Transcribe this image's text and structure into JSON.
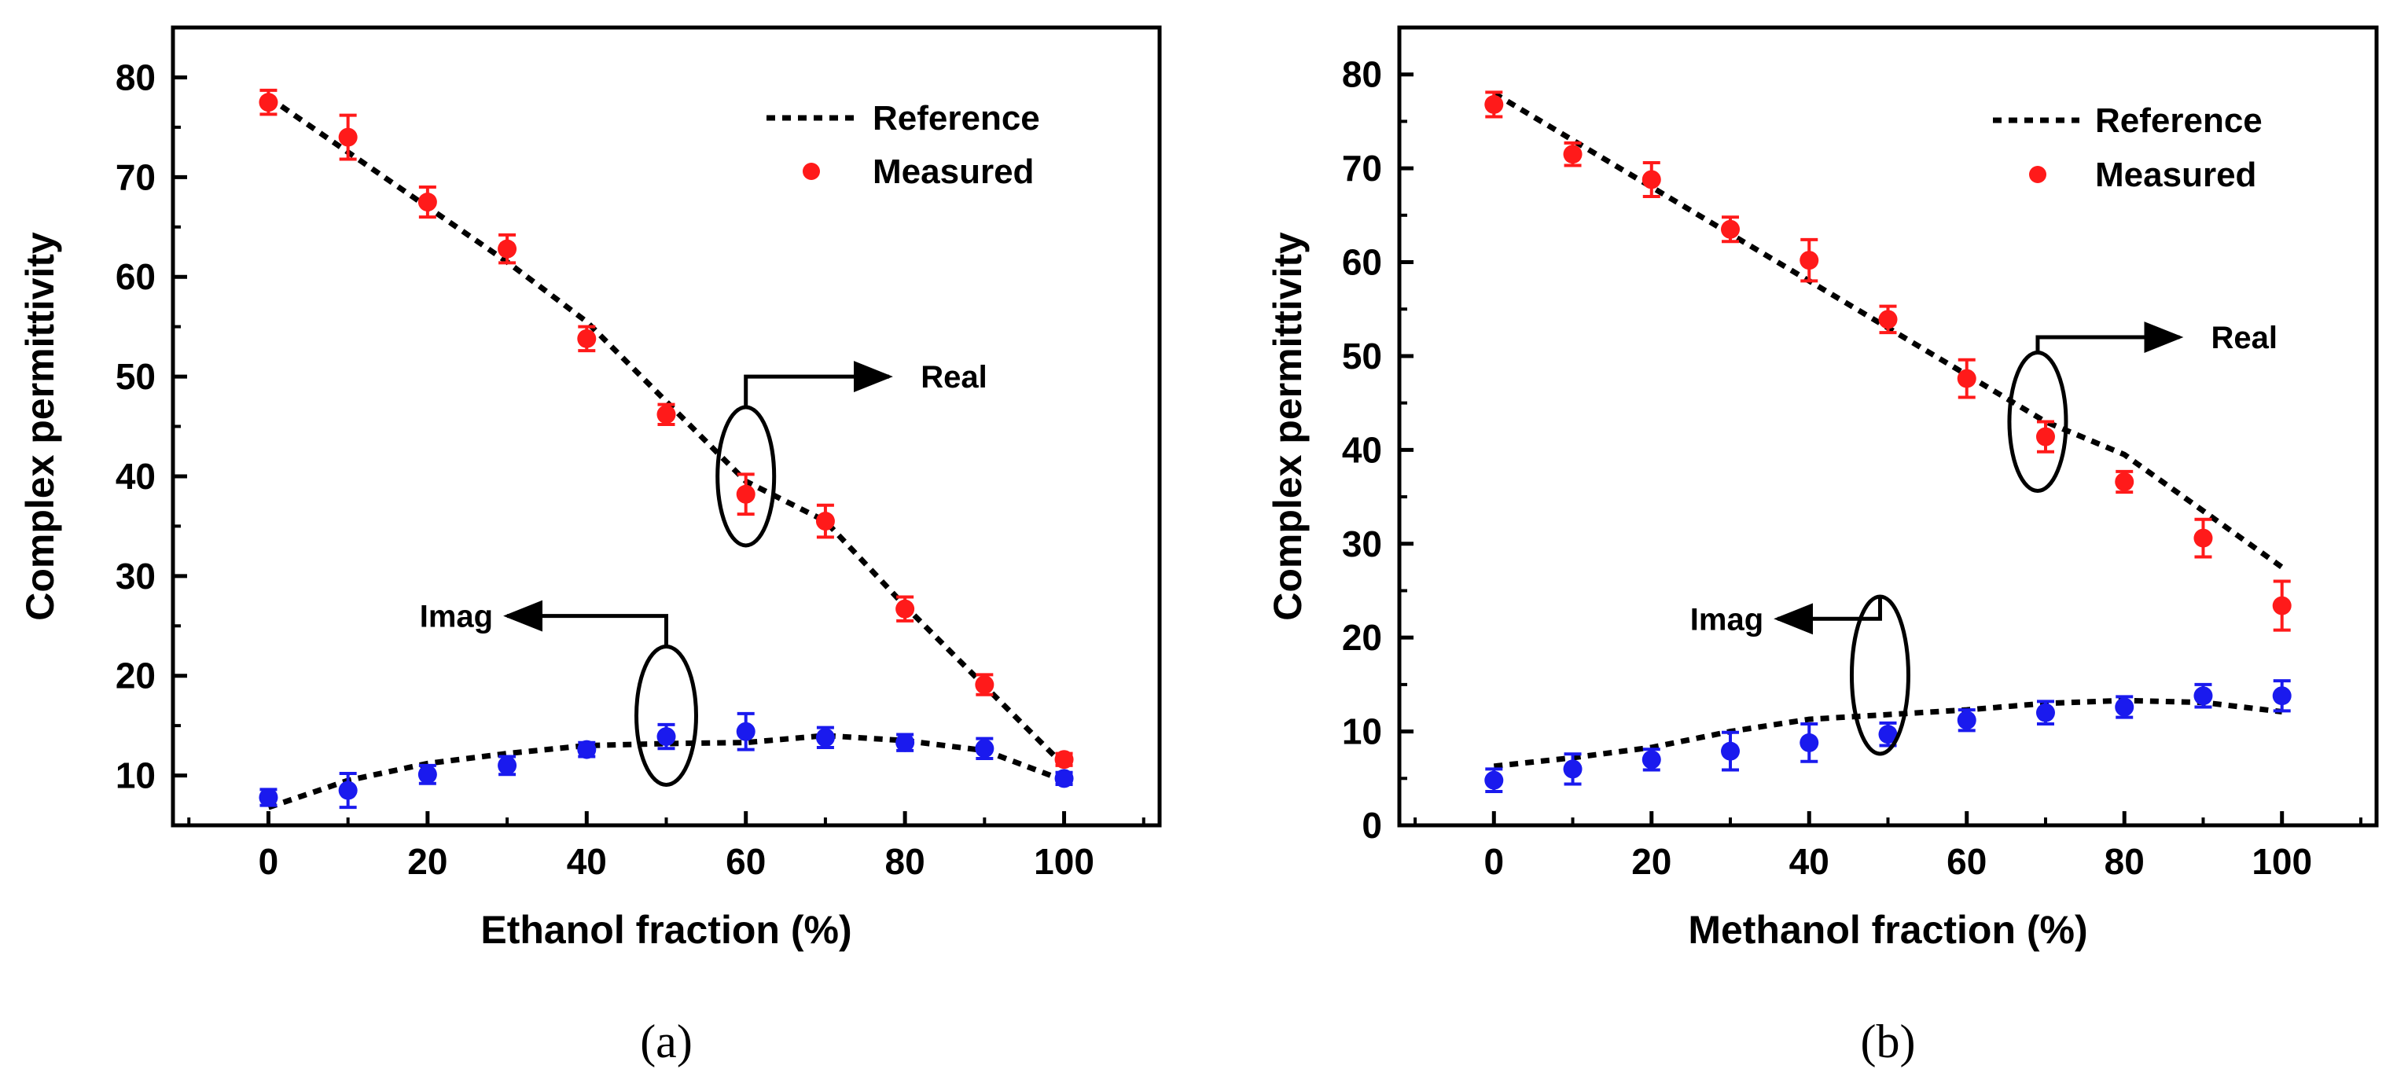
{
  "chart_data": [
    {
      "type": "scatter",
      "panel_label": "(a)",
      "xlabel": "Ethanol fraction (%)",
      "ylabel": "Complex permittivity",
      "xlim": [
        -12,
        112
      ],
      "ylim": [
        5,
        85
      ],
      "xticks": [
        0,
        20,
        40,
        60,
        80,
        100
      ],
      "yticks": [
        10,
        20,
        30,
        40,
        50,
        60,
        70,
        80
      ],
      "legend": {
        "position": "top-right",
        "reference_label": "Reference",
        "measured_label": "Measured"
      },
      "annotations": {
        "real_label": "Real",
        "imag_label": "Imag"
      },
      "colors": {
        "real": "#ff1a1a",
        "imag": "#1a1aee",
        "reference": "#000000"
      },
      "reference_real": {
        "x": [
          0,
          10,
          20,
          30,
          40,
          50,
          60,
          70,
          80,
          90,
          100
        ],
        "y": [
          78,
          72.5,
          67,
          61.5,
          55.5,
          47.5,
          39.5,
          35.5,
          27,
          19,
          11
        ]
      },
      "reference_imag": {
        "x": [
          0,
          10,
          20,
          30,
          40,
          50,
          60,
          70,
          80,
          90,
          100
        ],
        "y": [
          6.8,
          9.5,
          11.2,
          12.2,
          13,
          13.2,
          13.3,
          14,
          13.5,
          12.5,
          9.5
        ]
      },
      "measured_real": {
        "x": [
          0,
          10,
          20,
          30,
          40,
          50,
          60,
          70,
          80,
          90,
          100
        ],
        "y": [
          77.5,
          74,
          67.5,
          62.8,
          53.8,
          46.2,
          38.2,
          35.5,
          26.7,
          19.1,
          11.6
        ],
        "err": [
          1.2,
          2.2,
          1.5,
          1.4,
          1.2,
          1.0,
          2.0,
          1.6,
          1.2,
          1.0,
          0.6
        ]
      },
      "measured_imag": {
        "x": [
          0,
          10,
          20,
          30,
          40,
          50,
          60,
          70,
          80,
          90,
          100
        ],
        "y": [
          7.8,
          8.5,
          10.1,
          11,
          12.6,
          13.9,
          14.4,
          13.8,
          13.3,
          12.7,
          9.7
        ],
        "err": [
          0.8,
          1.7,
          0.9,
          0.9,
          0.7,
          1.2,
          1.8,
          1.0,
          0.8,
          1.0,
          0.6
        ]
      }
    },
    {
      "type": "scatter",
      "panel_label": "(b)",
      "xlabel": "Methanol fraction (%)",
      "ylabel": "Complex permittivity",
      "xlim": [
        -12,
        112
      ],
      "ylim": [
        0,
        85
      ],
      "xticks": [
        0,
        20,
        40,
        60,
        80,
        100
      ],
      "yticks": [
        0,
        10,
        20,
        30,
        40,
        50,
        60,
        70,
        80
      ],
      "legend": {
        "position": "top-right",
        "reference_label": "Reference",
        "measured_label": "Measured"
      },
      "annotations": {
        "real_label": "Real",
        "imag_label": "Imag"
      },
      "colors": {
        "real": "#ff1a1a",
        "imag": "#1a1aee",
        "reference": "#000000"
      },
      "reference_real": {
        "x": [
          0,
          10,
          20,
          30,
          40,
          50,
          60,
          70,
          80,
          90,
          100
        ],
        "y": [
          78,
          73,
          68,
          63,
          58,
          53,
          48,
          43,
          39.5,
          33.5,
          27.5
        ]
      },
      "reference_imag": {
        "x": [
          0,
          10,
          20,
          30,
          40,
          50,
          60,
          70,
          80,
          90,
          100
        ],
        "y": [
          6.3,
          7.2,
          8.3,
          10,
          11.3,
          11.8,
          12.3,
          13,
          13.3,
          13.1,
          12.1
        ]
      },
      "measured_real": {
        "x": [
          0,
          10,
          20,
          30,
          40,
          50,
          60,
          70,
          80,
          90,
          100
        ],
        "y": [
          76.8,
          71.5,
          68.8,
          63.5,
          60.2,
          53.9,
          47.6,
          41.4,
          36.6,
          30.6,
          23.4
        ],
        "err": [
          1.3,
          1.2,
          1.8,
          1.3,
          2.2,
          1.4,
          2.0,
          1.6,
          1.1,
          2.0,
          2.6
        ]
      },
      "measured_imag": {
        "x": [
          0,
          10,
          20,
          30,
          40,
          50,
          60,
          70,
          80,
          90,
          100
        ],
        "y": [
          4.8,
          6.0,
          7.0,
          7.9,
          8.8,
          9.7,
          11.2,
          12.0,
          12.6,
          13.8,
          13.8
        ],
        "err": [
          1.2,
          1.6,
          1.1,
          2.0,
          2.0,
          1.2,
          1.1,
          1.2,
          1.1,
          1.2,
          1.6
        ]
      }
    }
  ]
}
